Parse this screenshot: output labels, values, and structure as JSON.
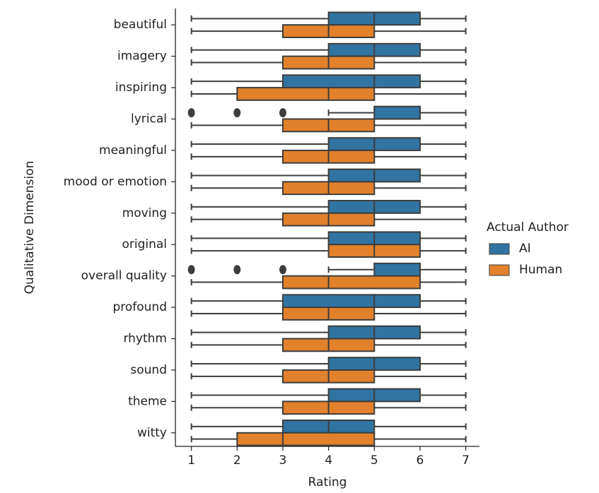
{
  "chart_data": {
    "type": "boxplot",
    "orientation": "horizontal",
    "x_label": "Rating",
    "y_label": "Qualitative Dimension",
    "legend_title": "Actual Author",
    "legend_position": "right",
    "categories": [
      "beautiful",
      "imagery",
      "inspiring",
      "lyrical",
      "meaningful",
      "mood or emotion",
      "moving",
      "original",
      "overall quality",
      "profound",
      "rhythm",
      "sound",
      "theme",
      "witty"
    ],
    "xlim": [
      0.65,
      7.3
    ],
    "xticks": [
      1,
      2,
      3,
      4,
      5,
      6,
      7
    ],
    "series": [
      {
        "name": "AI",
        "color": "#3274a1",
        "min": [
          1,
          1,
          1,
          4,
          1,
          1,
          1,
          1,
          4,
          1,
          1,
          1,
          1,
          1
        ],
        "q1": [
          4,
          4,
          3,
          5,
          4,
          4,
          4,
          4,
          5,
          3,
          4,
          4,
          4,
          3
        ],
        "median": [
          5,
          5,
          5,
          6,
          5,
          5,
          5,
          5,
          6,
          5,
          5,
          5,
          5,
          4
        ],
        "q3": [
          6,
          6,
          6,
          6,
          6,
          6,
          6,
          6,
          6,
          6,
          6,
          6,
          6,
          5
        ],
        "max": [
          7,
          7,
          7,
          7,
          7,
          7,
          7,
          7,
          7,
          7,
          7,
          7,
          7,
          7
        ],
        "outliers": [
          [],
          [],
          [],
          [
            1,
            2,
            3
          ],
          [],
          [],
          [],
          [],
          [
            1,
            2,
            3
          ],
          [],
          [],
          [],
          [],
          []
        ]
      },
      {
        "name": "Human",
        "color": "#e1812c",
        "min": [
          1,
          1,
          1,
          1,
          1,
          1,
          1,
          1,
          1,
          1,
          1,
          1,
          1,
          1
        ],
        "q1": [
          3,
          3,
          2,
          3,
          3,
          3,
          3,
          4,
          3,
          3,
          3,
          3,
          3,
          2
        ],
        "median": [
          4,
          4,
          4,
          4,
          4,
          4,
          4,
          5,
          4,
          4,
          4,
          4,
          4,
          3
        ],
        "q3": [
          5,
          5,
          5,
          5,
          5,
          5,
          5,
          6,
          6,
          5,
          5,
          5,
          5,
          5
        ],
        "max": [
          7,
          7,
          7,
          7,
          7,
          7,
          7,
          7,
          7,
          7,
          7,
          7,
          7,
          7
        ],
        "outliers": [
          [],
          [],
          [],
          [],
          [],
          [],
          [],
          [],
          [],
          [],
          [],
          [],
          [],
          []
        ]
      }
    ]
  }
}
